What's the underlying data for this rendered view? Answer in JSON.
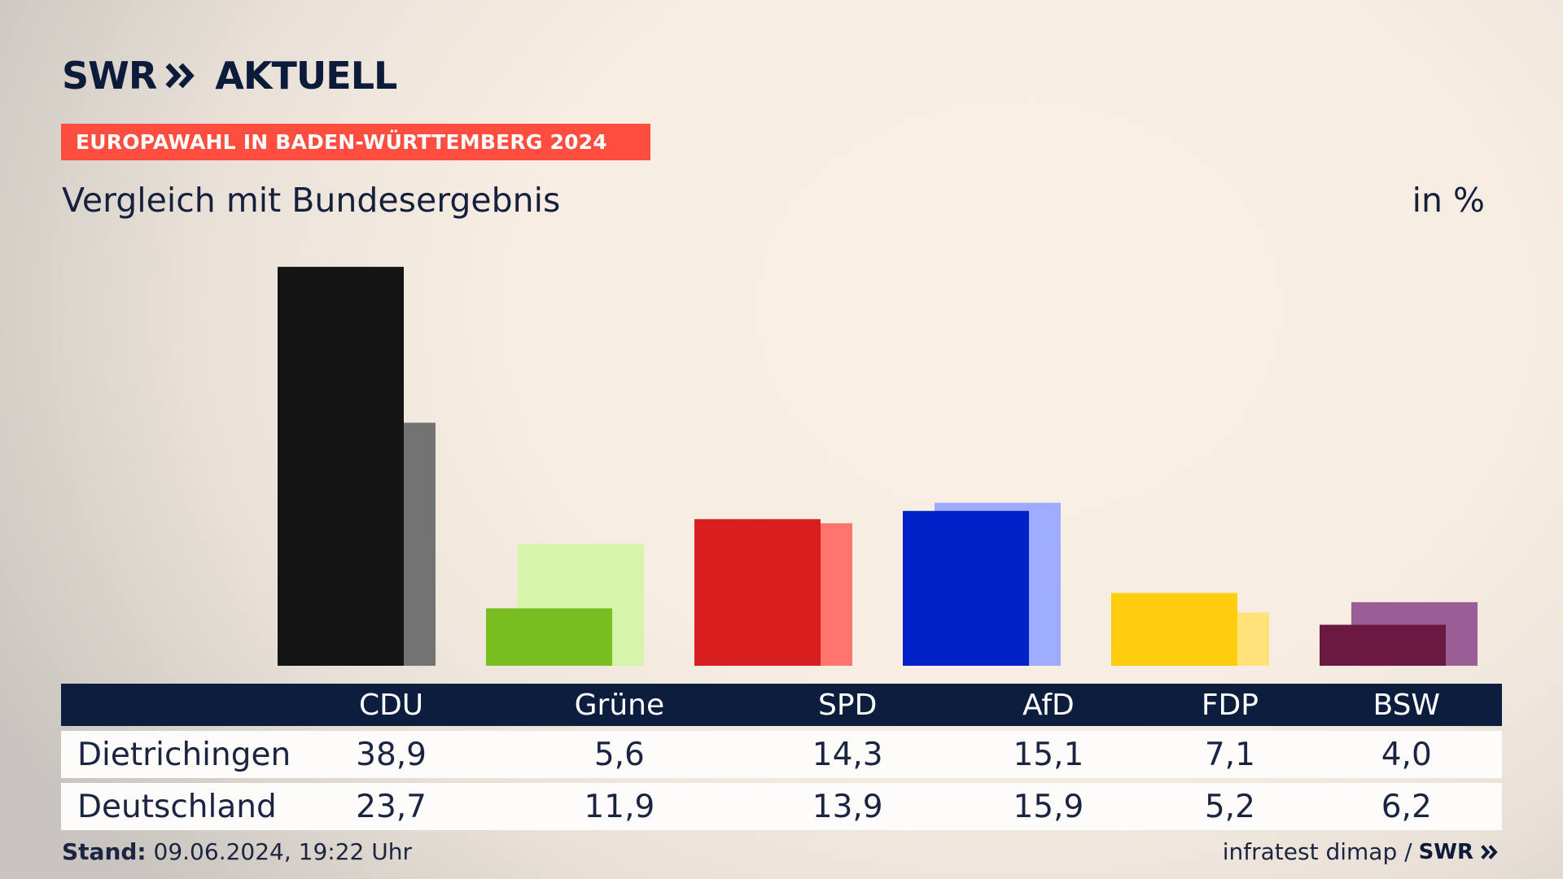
{
  "brand": {
    "swr": "SWR",
    "aktuell": "AKTUELL"
  },
  "badge": "EUROPAWAHL IN BADEN-WÜRTTEMBERG 2024",
  "subtitle": "Vergleich mit Bundesergebnis",
  "unit": "in %",
  "table": {
    "rows": [
      {
        "label": "Dietrichingen",
        "values": [
          "38,9",
          "5,6",
          "14,3",
          "15,1",
          "7,1",
          "4,0"
        ]
      },
      {
        "label": "Deutschland",
        "values": [
          "23,7",
          "11,9",
          "13,9",
          "15,9",
          "5,2",
          "6,2"
        ]
      }
    ]
  },
  "footer": {
    "stand_label": "Stand:",
    "stand_value": "09.06.2024, 19:22 Uhr",
    "source": "infratest dimap /",
    "source_logo": "SWR"
  },
  "chart_data": {
    "type": "bar",
    "categories": [
      "CDU",
      "Grüne",
      "SPD",
      "AfD",
      "FDP",
      "BSW"
    ],
    "series": [
      {
        "name": "Dietrichingen",
        "values": [
          38.9,
          5.6,
          14.3,
          15.1,
          7.1,
          4.0
        ]
      },
      {
        "name": "Deutschland",
        "values": [
          23.7,
          11.9,
          13.9,
          15.9,
          5.2,
          6.2
        ]
      }
    ],
    "colors": {
      "local": [
        "#141414",
        "#78be1e",
        "#d71f1f",
        "#0021c7",
        "#ffcc0e",
        "#6a1a40"
      ],
      "national": [
        "#737373",
        "#d7f5aa",
        "#ff756e",
        "#9eacff",
        "#ffe27a",
        "#9b5d96"
      ]
    },
    "ylim": [
      0,
      40
    ],
    "grid": false,
    "legend": "table-below"
  }
}
